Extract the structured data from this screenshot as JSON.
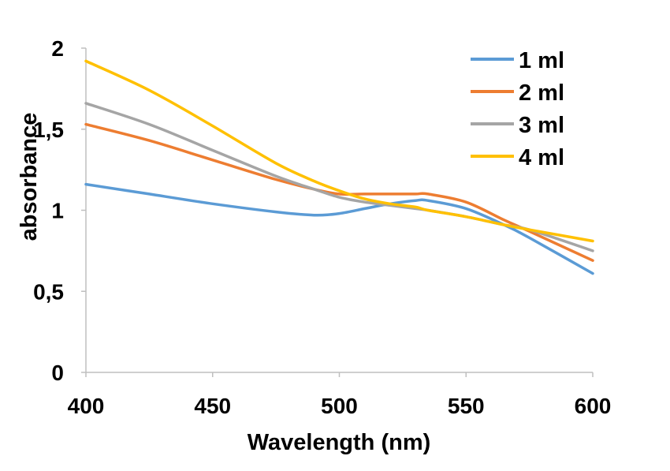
{
  "chart_data": {
    "type": "line",
    "title": "",
    "xlabel": "Wavelength (nm)",
    "ylabel": "absorbance",
    "xlim": [
      400,
      600
    ],
    "ylim": [
      0,
      2
    ],
    "x_ticks": [
      "400",
      "450",
      "500",
      "550",
      "600"
    ],
    "y_ticks": [
      "0",
      "0,5",
      "1",
      "1,5",
      "2"
    ],
    "grid": false,
    "legend_position": "top-right",
    "x": [
      400,
      425,
      450,
      475,
      490,
      500,
      510,
      520,
      530,
      535,
      550,
      565,
      575,
      600
    ],
    "series": [
      {
        "name": "1 ml",
        "color": "#5b9bd5",
        "values": [
          1.16,
          1.1,
          1.04,
          0.99,
          0.97,
          0.98,
          1.01,
          1.04,
          1.06,
          1.06,
          1.01,
          0.91,
          0.83,
          0.61
        ]
      },
      {
        "name": "2 ml",
        "color": "#ed7d31",
        "values": [
          1.53,
          1.43,
          1.31,
          1.19,
          1.13,
          1.1,
          1.1,
          1.1,
          1.1,
          1.1,
          1.05,
          0.94,
          0.87,
          0.69
        ]
      },
      {
        "name": "3 ml",
        "color": "#a5a5a5",
        "values": [
          1.66,
          1.53,
          1.37,
          1.21,
          1.13,
          1.08,
          1.05,
          1.03,
          1.01,
          1.0,
          0.96,
          0.91,
          0.88,
          0.75
        ]
      },
      {
        "name": "4 ml",
        "color": "#ffc000",
        "values": [
          1.92,
          1.74,
          1.52,
          1.29,
          1.18,
          1.12,
          1.07,
          1.04,
          1.02,
          1.0,
          0.96,
          0.91,
          0.88,
          0.81
        ]
      }
    ]
  }
}
